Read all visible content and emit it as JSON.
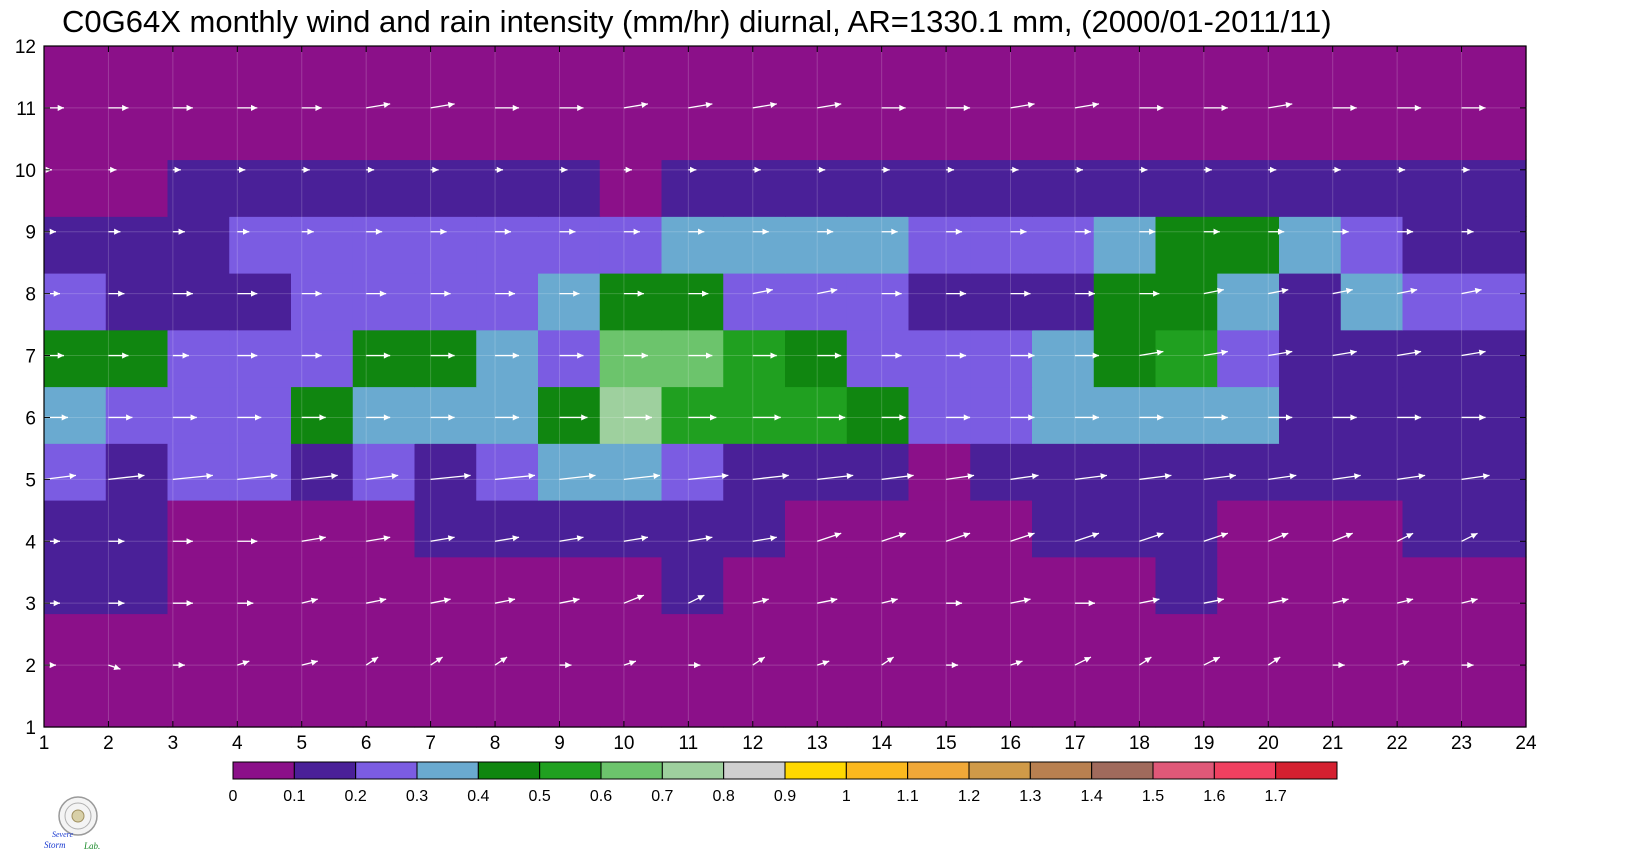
{
  "chart_data": {
    "type": "heatmap",
    "title": "C0G64X monthly wind and rain intensity (mm/hr) diurnal, AR=1330.1 mm, (2000/01-2011/11)",
    "xlabel": "",
    "ylabel": "",
    "x_ticks": [
      "1",
      "2",
      "3",
      "4",
      "5",
      "6",
      "7",
      "8",
      "9",
      "10",
      "11",
      "12",
      "13",
      "14",
      "15",
      "16",
      "17",
      "18",
      "19",
      "20",
      "21",
      "22",
      "23",
      "24"
    ],
    "y_ticks": [
      "1",
      "2",
      "3",
      "4",
      "5",
      "6",
      "7",
      "8",
      "9",
      "10",
      "11",
      "12"
    ],
    "xlim": [
      1,
      24
    ],
    "ylim": [
      1,
      12
    ],
    "levels": [
      0,
      0.1,
      0.2,
      0.3,
      0.4,
      0.5,
      0.6,
      0.7,
      0.8,
      0.9,
      1,
      1.1,
      1.2,
      1.3,
      1.4,
      1.5,
      1.6,
      1.7
    ],
    "level_labels": [
      "0",
      "0.1",
      "0.2",
      "0.3",
      "0.4",
      "0.5",
      "0.6",
      "0.7",
      "0.8",
      "0.9",
      "1",
      "1.1",
      "1.2",
      "1.3",
      "1.4",
      "1.5",
      "1.6",
      "1.7"
    ],
    "colorbar_colors": [
      "#8b1089",
      "#4a2098",
      "#7b5ce2",
      "#6aaad0",
      "#108610",
      "#20a020",
      "#6cc46c",
      "#9ed09e",
      "#cfcfcf",
      "#ffd800",
      "#fbb81e",
      "#f0a838",
      "#d09a48",
      "#b88050",
      "#a06a5c",
      "#e05878",
      "#f04060",
      "#d42030"
    ],
    "rain_rows": [
      [
        0.06,
        0.06,
        0.06,
        0.06,
        0.06,
        0.06,
        0.06,
        0.06,
        0.06,
        0.06,
        0.06,
        0.06,
        0.06,
        0.06,
        0.06,
        0.06,
        0.06,
        0.06,
        0.06,
        0.06,
        0.06,
        0.06,
        0.06,
        0.06
      ],
      [
        0.06,
        0.07,
        0.07,
        0.07,
        0.06,
        0.06,
        0.06,
        0.06,
        0.06,
        0.06,
        0.06,
        0.06,
        0.06,
        0.06,
        0.06,
        0.06,
        0.06,
        0.06,
        0.06,
        0.06,
        0.06,
        0.06,
        0.06,
        0.06
      ],
      [
        0.12,
        0.13,
        0.08,
        0.08,
        0.08,
        0.08,
        0.09,
        0.09,
        0.09,
        0.09,
        0.12,
        0.08,
        0.07,
        0.07,
        0.07,
        0.07,
        0.09,
        0.09,
        0.11,
        0.08,
        0.07,
        0.07,
        0.09,
        0.09
      ],
      [
        0.15,
        0.16,
        0.09,
        0.08,
        0.08,
        0.09,
        0.14,
        0.16,
        0.17,
        0.17,
        0.18,
        0.14,
        0.09,
        0.06,
        0.06,
        0.08,
        0.14,
        0.14,
        0.14,
        0.06,
        0.06,
        0.06,
        0.13,
        0.14
      ],
      [
        0.22,
        0.18,
        0.21,
        0.21,
        0.19,
        0.22,
        0.18,
        0.22,
        0.35,
        0.38,
        0.24,
        0.18,
        0.16,
        0.13,
        0.08,
        0.13,
        0.15,
        0.18,
        0.18,
        0.14,
        0.13,
        0.13,
        0.16,
        0.17
      ],
      [
        0.33,
        0.26,
        0.27,
        0.28,
        0.43,
        0.33,
        0.33,
        0.38,
        0.48,
        0.73,
        0.55,
        0.53,
        0.53,
        0.45,
        0.24,
        0.27,
        0.3,
        0.31,
        0.34,
        0.3,
        0.18,
        0.18,
        0.13,
        0.19
      ],
      [
        0.44,
        0.44,
        0.27,
        0.25,
        0.29,
        0.42,
        0.44,
        0.33,
        0.28,
        0.62,
        0.68,
        0.52,
        0.43,
        0.24,
        0.23,
        0.25,
        0.32,
        0.46,
        0.5,
        0.28,
        0.19,
        0.18,
        0.17,
        0.18
      ],
      [
        0.28,
        0.19,
        0.19,
        0.18,
        0.23,
        0.27,
        0.28,
        0.29,
        0.39,
        0.43,
        0.44,
        0.29,
        0.24,
        0.21,
        0.19,
        0.17,
        0.13,
        0.43,
        0.49,
        0.34,
        0.13,
        0.33,
        0.21,
        0.2
      ],
      [
        0.19,
        0.17,
        0.17,
        0.21,
        0.22,
        0.22,
        0.22,
        0.24,
        0.24,
        0.26,
        0.31,
        0.31,
        0.31,
        0.31,
        0.23,
        0.23,
        0.22,
        0.31,
        0.42,
        0.43,
        0.33,
        0.23,
        0.19,
        0.18
      ],
      [
        0.08,
        0.09,
        0.11,
        0.11,
        0.13,
        0.13,
        0.13,
        0.11,
        0.13,
        0.09,
        0.14,
        0.15,
        0.14,
        0.14,
        0.16,
        0.16,
        0.17,
        0.17,
        0.17,
        0.17,
        0.16,
        0.14,
        0.13,
        0.13
      ],
      [
        0.06,
        0.06,
        0.06,
        0.06,
        0.06,
        0.06,
        0.06,
        0.06,
        0.06,
        0.06,
        0.06,
        0.06,
        0.06,
        0.06,
        0.06,
        0.06,
        0.06,
        0.06,
        0.06,
        0.06,
        0.06,
        0.06,
        0.06,
        0.06
      ],
      [
        0.06,
        0.06,
        0.06,
        0.06,
        0.06,
        0.06,
        0.06,
        0.06,
        0.06,
        0.06,
        0.06,
        0.06,
        0.06,
        0.06,
        0.06,
        0.06,
        0.06,
        0.06,
        0.06,
        0.06,
        0.06,
        0.06,
        0.06,
        0.06
      ]
    ],
    "wind_arrows": {
      "x": [
        1,
        2,
        3,
        4,
        5,
        6,
        7,
        8,
        9,
        10,
        11,
        12,
        13,
        14,
        15,
        16,
        17,
        18,
        19,
        20,
        21,
        22,
        23,
        24
      ],
      "y": [
        2,
        3,
        4,
        5,
        6,
        7,
        8,
        9,
        10,
        11
      ],
      "u": [
        [
          0.3,
          0.3,
          0.3,
          0.3,
          0.4,
          0.3,
          0.3,
          0.3,
          0.3,
          0.3,
          0.3,
          0.3,
          0.3,
          0.3,
          0.3,
          0.3,
          0.4,
          0.3,
          0.4,
          0.3,
          0.3,
          0.3,
          0.3,
          0.3
        ],
        [
          0.4,
          0.4,
          0.5,
          0.4,
          0.4,
          0.5,
          0.5,
          0.5,
          0.5,
          0.5,
          0.4,
          0.4,
          0.5,
          0.4,
          0.4,
          0.5,
          0.5,
          0.5,
          0.5,
          0.5,
          0.4,
          0.4,
          0.4,
          0.4
        ],
        [
          0.4,
          0.4,
          0.5,
          0.5,
          0.6,
          0.6,
          0.6,
          0.6,
          0.6,
          0.6,
          0.6,
          0.6,
          0.6,
          0.6,
          0.6,
          0.6,
          0.6,
          0.6,
          0.6,
          0.5,
          0.5,
          0.4,
          0.4,
          0.4
        ],
        [
          0.8,
          0.9,
          1.0,
          1.0,
          0.9,
          0.8,
          1.0,
          1.0,
          0.9,
          0.9,
          1.0,
          0.9,
          0.9,
          0.8,
          0.7,
          0.7,
          0.8,
          0.8,
          0.8,
          0.7,
          0.7,
          0.7,
          0.7,
          0.7
        ],
        [
          0.6,
          0.6,
          0.6,
          0.6,
          0.6,
          0.6,
          0.6,
          0.6,
          0.7,
          0.7,
          0.7,
          0.7,
          0.7,
          0.6,
          0.6,
          0.6,
          0.6,
          0.6,
          0.6,
          0.6,
          0.6,
          0.6,
          0.6,
          0.6
        ],
        [
          0.5,
          0.5,
          0.4,
          0.5,
          0.5,
          0.6,
          0.6,
          0.6,
          0.6,
          0.6,
          0.6,
          0.6,
          0.6,
          0.5,
          0.5,
          0.6,
          0.6,
          0.6,
          0.6,
          0.6,
          0.6,
          0.6,
          0.6,
          0.6
        ],
        [
          0.4,
          0.4,
          0.5,
          0.5,
          0.5,
          0.5,
          0.5,
          0.5,
          0.5,
          0.5,
          0.5,
          0.5,
          0.5,
          0.5,
          0.5,
          0.5,
          0.5,
          0.5,
          0.5,
          0.5,
          0.5,
          0.5,
          0.5,
          0.5
        ],
        [
          0.3,
          0.3,
          0.3,
          0.3,
          0.3,
          0.4,
          0.4,
          0.4,
          0.4,
          0.4,
          0.4,
          0.4,
          0.4,
          0.4,
          0.4,
          0.4,
          0.4,
          0.4,
          0.4,
          0.4,
          0.4,
          0.4,
          0.3,
          0.3
        ],
        [
          0.2,
          0.2,
          0.2,
          0.2,
          0.2,
          0.2,
          0.2,
          0.2,
          0.2,
          0.2,
          0.2,
          0.2,
          0.2,
          0.2,
          0.2,
          0.2,
          0.2,
          0.2,
          0.2,
          0.2,
          0.2,
          0.2,
          0.2,
          0.2
        ],
        [
          0.5,
          0.5,
          0.5,
          0.5,
          0.5,
          0.6,
          0.6,
          0.6,
          0.6,
          0.6,
          0.6,
          0.6,
          0.6,
          0.6,
          0.6,
          0.6,
          0.6,
          0.6,
          0.6,
          0.6,
          0.6,
          0.6,
          0.6,
          0.6
        ]
      ],
      "v": [
        [
          0.0,
          -0.1,
          0.0,
          0.1,
          0.1,
          0.2,
          0.2,
          0.2,
          0.0,
          0.1,
          0.0,
          0.2,
          0.1,
          0.2,
          0.0,
          0.1,
          0.2,
          0.2,
          0.2,
          0.2,
          0.0,
          0.1,
          0.0,
          0.0
        ],
        [
          0.0,
          0.0,
          0.0,
          0.0,
          0.1,
          0.1,
          0.1,
          0.1,
          0.1,
          0.2,
          0.2,
          0.1,
          0.1,
          0.1,
          0.0,
          0.1,
          0.0,
          0.1,
          0.1,
          0.1,
          0.1,
          0.1,
          0.1,
          0.1
        ],
        [
          0.0,
          0.0,
          0.0,
          0.0,
          0.1,
          0.1,
          0.1,
          0.1,
          0.1,
          0.1,
          0.1,
          0.1,
          0.2,
          0.2,
          0.2,
          0.2,
          0.2,
          0.2,
          0.2,
          0.2,
          0.2,
          0.2,
          0.2,
          0.2
        ],
        [
          0.1,
          0.1,
          0.1,
          0.1,
          0.1,
          0.1,
          0.1,
          0.1,
          0.1,
          0.1,
          0.1,
          0.1,
          0.1,
          0.1,
          0.1,
          0.1,
          0.1,
          0.1,
          0.1,
          0.1,
          0.1,
          0.1,
          0.1,
          0.1
        ],
        [
          0.0,
          0.0,
          0.0,
          0.0,
          0.0,
          0.0,
          0.0,
          0.0,
          0.0,
          0.0,
          0.0,
          0.0,
          0.0,
          0.0,
          0.0,
          0.0,
          0.0,
          0.0,
          0.0,
          0.0,
          0.0,
          0.0,
          0.0,
          0.0
        ],
        [
          0.0,
          0.0,
          0.0,
          0.0,
          0.0,
          0.0,
          0.0,
          0.0,
          0.0,
          0.0,
          0.0,
          0.0,
          0.0,
          0.0,
          0.0,
          0.0,
          0.0,
          0.1,
          0.1,
          0.1,
          0.1,
          0.1,
          0.1,
          0.1
        ],
        [
          0.0,
          0.0,
          0.0,
          0.0,
          0.0,
          0.0,
          0.0,
          0.0,
          0.0,
          0.0,
          0.0,
          0.1,
          0.1,
          0.0,
          0.0,
          0.0,
          0.0,
          0.0,
          0.1,
          0.1,
          0.1,
          0.1,
          0.1,
          0.1
        ],
        [
          0.0,
          0.0,
          0.0,
          0.0,
          0.0,
          0.0,
          0.0,
          0.0,
          0.0,
          0.0,
          0.0,
          0.0,
          0.0,
          0.0,
          0.0,
          0.0,
          0.0,
          0.0,
          0.0,
          0.0,
          0.0,
          0.0,
          0.0,
          0.0
        ],
        [
          0.0,
          0.0,
          0.0,
          0.0,
          0.0,
          0.0,
          0.0,
          0.0,
          0.0,
          0.0,
          0.0,
          0.0,
          0.0,
          0.0,
          0.0,
          0.0,
          0.0,
          0.0,
          0.0,
          0.0,
          0.0,
          0.0,
          0.0,
          0.0
        ],
        [
          0.0,
          0.0,
          0.0,
          0.0,
          0.0,
          0.1,
          0.1,
          0.0,
          0.0,
          0.1,
          0.1,
          0.1,
          0.1,
          0.0,
          0.0,
          0.1,
          0.1,
          0.0,
          0.0,
          0.1,
          0.0,
          0.0,
          0.0,
          0.0
        ]
      ]
    },
    "grid": true,
    "legend": "colorbar bottom"
  },
  "logo": {
    "text_top": "Severe",
    "text_bottom": "Storm",
    "text_lab": "Lab."
  }
}
